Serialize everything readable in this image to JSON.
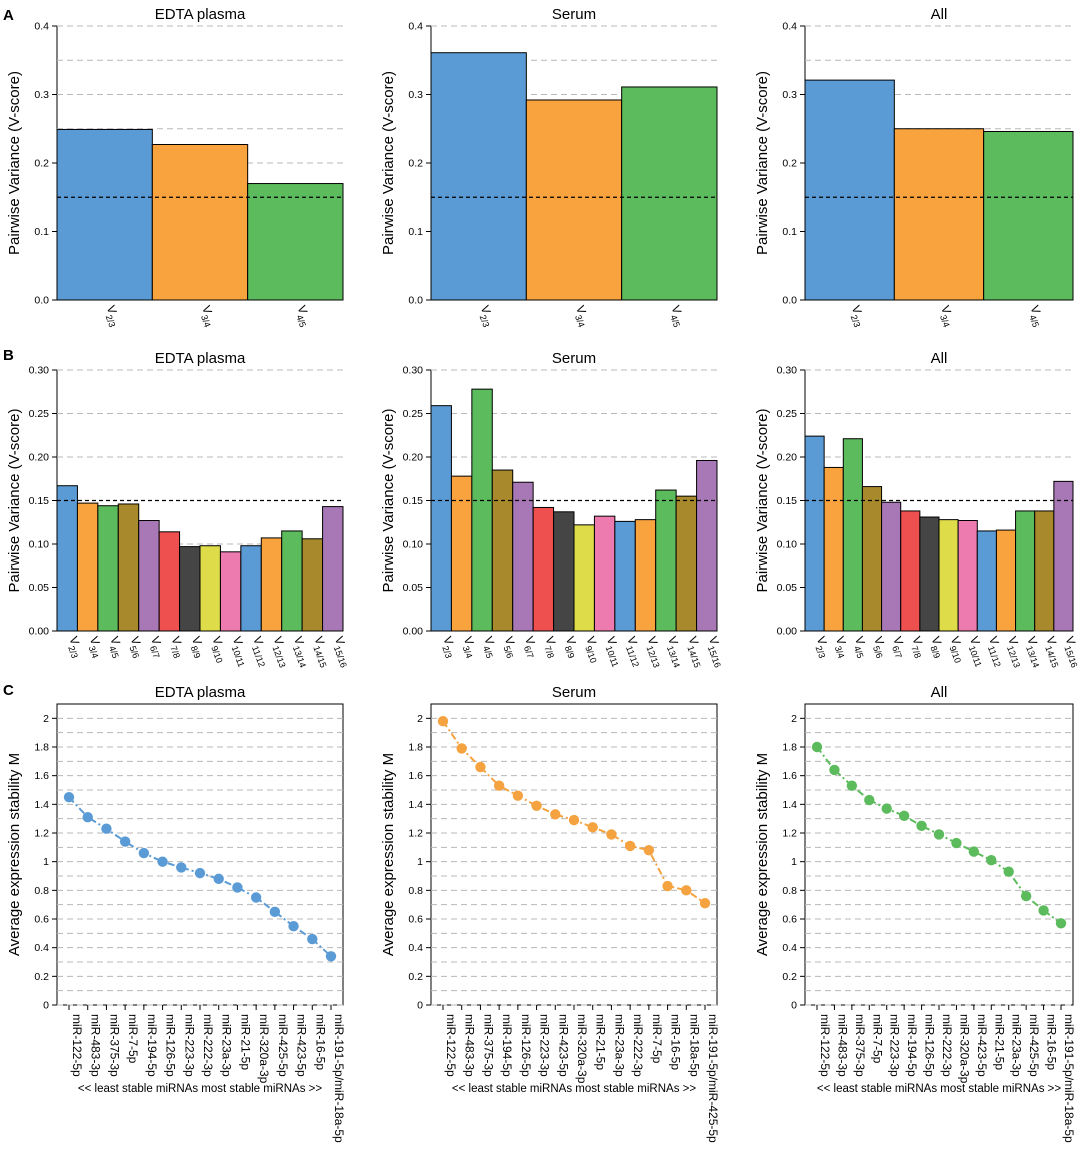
{
  "colors": {
    "blue": "#5b9bd5",
    "orange": "#f9a33f",
    "green": "#5cbb5c",
    "olive": "#a88a2c",
    "purple": "#a877b6",
    "red": "#ee4f4f",
    "dark": "#454545",
    "yellow": "#dedc48",
    "pink": "#ee7bb0",
    "threshold_line": "#000000",
    "grid": "#b8b8b8",
    "dot_blue": "#5b9bd5",
    "dot_orange": "#f4a340",
    "dot_green": "#5cbb5c"
  },
  "panel_labels": [
    "A",
    "B",
    "C"
  ],
  "chart_data": [
    {
      "id": "a1",
      "panel": "A",
      "type": "bar",
      "title": "EDTA plasma",
      "ylabel": "Pairwise Variance (V-score)",
      "ylim": [
        0,
        0.4
      ],
      "yticks": [
        "0.0",
        "0.1",
        "0.2",
        "0.3",
        "0.4"
      ],
      "categories": [
        [
          "V",
          "2/3"
        ],
        [
          "V",
          "3/4"
        ],
        [
          "V",
          "4/5"
        ]
      ],
      "values": [
        0.249,
        0.227,
        0.17
      ],
      "colors": [
        "blue",
        "orange",
        "green"
      ],
      "threshold": 0.15
    },
    {
      "id": "a2",
      "panel": "A",
      "type": "bar",
      "title": "Serum",
      "ylabel": "Pairwise Variance (V-score)",
      "ylim": [
        0,
        0.4
      ],
      "yticks": [
        "0.0",
        "0.1",
        "0.2",
        "0.3",
        "0.4"
      ],
      "categories": [
        [
          "V",
          "2/3"
        ],
        [
          "V",
          "3/4"
        ],
        [
          "V",
          "4/5"
        ]
      ],
      "values": [
        0.361,
        0.292,
        0.311
      ],
      "colors": [
        "blue",
        "orange",
        "green"
      ],
      "threshold": 0.15
    },
    {
      "id": "a3",
      "panel": "A",
      "type": "bar",
      "title": "All",
      "ylabel": "Pairwise Variance (V-score)",
      "ylim": [
        0,
        0.4
      ],
      "yticks": [
        "0.0",
        "0.1",
        "0.2",
        "0.3",
        "0.4"
      ],
      "categories": [
        [
          "V",
          "2/3"
        ],
        [
          "V",
          "3/4"
        ],
        [
          "V",
          "4/5"
        ]
      ],
      "values": [
        0.321,
        0.25,
        0.246
      ],
      "colors": [
        "blue",
        "orange",
        "green"
      ],
      "threshold": 0.15
    },
    {
      "id": "b1",
      "panel": "B",
      "type": "bar",
      "title": "EDTA plasma",
      "ylabel": "Pairwise Variance (V-score)",
      "ylim": [
        0,
        0.3
      ],
      "yticks": [
        "0.00",
        "0.05",
        "0.10",
        "0.15",
        "0.20",
        "0.25",
        "0.30"
      ],
      "categories": [
        [
          "V",
          "2/3"
        ],
        [
          "V",
          "3/4"
        ],
        [
          "V",
          "4/5"
        ],
        [
          "V",
          "5/6"
        ],
        [
          "V",
          "6/7"
        ],
        [
          "V",
          "7/8"
        ],
        [
          "V",
          "8/9"
        ],
        [
          "V",
          "9/10"
        ],
        [
          "V",
          "10/11"
        ],
        [
          "V",
          "11/12"
        ],
        [
          "V",
          "12/13"
        ],
        [
          "V",
          "13/14"
        ],
        [
          "V",
          "14/15"
        ],
        [
          "V",
          "15/16"
        ]
      ],
      "values": [
        0.167,
        0.147,
        0.144,
        0.146,
        0.127,
        0.114,
        0.097,
        0.098,
        0.091,
        0.098,
        0.107,
        0.115,
        0.106,
        0.143
      ],
      "colors": [
        "blue",
        "orange",
        "green",
        "olive",
        "purple",
        "red",
        "dark",
        "yellow",
        "pink",
        "blue",
        "orange",
        "green",
        "olive",
        "purple"
      ],
      "threshold": 0.15
    },
    {
      "id": "b2",
      "panel": "B",
      "type": "bar",
      "title": "Serum",
      "ylabel": "Pairwise Variance (V-score)",
      "ylim": [
        0,
        0.3
      ],
      "yticks": [
        "0.00",
        "0.05",
        "0.10",
        "0.15",
        "0.20",
        "0.25",
        "0.30"
      ],
      "categories": [
        [
          "V",
          "2/3"
        ],
        [
          "V",
          "3/4"
        ],
        [
          "V",
          "4/5"
        ],
        [
          "V",
          "5/6"
        ],
        [
          "V",
          "6/7"
        ],
        [
          "V",
          "7/8"
        ],
        [
          "V",
          "8/9"
        ],
        [
          "V",
          "9/10"
        ],
        [
          "V",
          "10/11"
        ],
        [
          "V",
          "11/12"
        ],
        [
          "V",
          "12/13"
        ],
        [
          "V",
          "13/14"
        ],
        [
          "V",
          "14/15"
        ],
        [
          "V",
          "15/16"
        ]
      ],
      "values": [
        0.259,
        0.178,
        0.278,
        0.185,
        0.171,
        0.142,
        0.137,
        0.122,
        0.132,
        0.126,
        0.128,
        0.162,
        0.155,
        0.196
      ],
      "colors": [
        "blue",
        "orange",
        "green",
        "olive",
        "purple",
        "red",
        "dark",
        "yellow",
        "pink",
        "blue",
        "orange",
        "green",
        "olive",
        "purple"
      ],
      "threshold": 0.15
    },
    {
      "id": "b3",
      "panel": "B",
      "type": "bar",
      "title": "All",
      "ylabel": "Pairwise Variance (V-score)",
      "ylim": [
        0,
        0.3
      ],
      "yticks": [
        "0.00",
        "0.05",
        "0.10",
        "0.15",
        "0.20",
        "0.25",
        "0.30"
      ],
      "categories": [
        [
          "V",
          "2/3"
        ],
        [
          "V",
          "3/4"
        ],
        [
          "V",
          "4/5"
        ],
        [
          "V",
          "5/6"
        ],
        [
          "V",
          "6/7"
        ],
        [
          "V",
          "7/8"
        ],
        [
          "V",
          "8/9"
        ],
        [
          "V",
          "9/10"
        ],
        [
          "V",
          "10/11"
        ],
        [
          "V",
          "11/12"
        ],
        [
          "V",
          "12/13"
        ],
        [
          "V",
          "13/14"
        ],
        [
          "V",
          "14/15"
        ],
        [
          "V",
          "15/16"
        ]
      ],
      "values": [
        0.224,
        0.188,
        0.221,
        0.166,
        0.148,
        0.138,
        0.131,
        0.128,
        0.127,
        0.115,
        0.116,
        0.138,
        0.138,
        0.172
      ],
      "colors": [
        "blue",
        "orange",
        "green",
        "olive",
        "purple",
        "red",
        "dark",
        "yellow",
        "pink",
        "blue",
        "orange",
        "green",
        "olive",
        "purple"
      ],
      "threshold": 0.15
    },
    {
      "id": "c1",
      "panel": "C",
      "type": "line",
      "title": "EDTA plasma",
      "ylabel": "Average expression stability M",
      "ylim": [
        0,
        2.1
      ],
      "yticks": [
        "0",
        "0.2",
        "0.4",
        "0.6",
        "0.8",
        "1",
        "1.2",
        "1.4",
        "1.6",
        "1.8",
        "2"
      ],
      "categories": [
        "miR-122-5p",
        "miR-483-3p",
        "miR-375-3p",
        "miR-7-5p",
        "miR-194-5p",
        "miR-126-5p",
        "miR-223-3p",
        "miR-222-3p",
        "miR-23a-3p",
        "miR-21-5p",
        "miR-320a-3p",
        "miR-425-5p",
        "miR-423-5p",
        "miR-16-5p",
        "miR-191-5p/miR-18a-5p"
      ],
      "values": [
        1.45,
        1.31,
        1.23,
        1.14,
        1.06,
        1.0,
        0.96,
        0.92,
        0.88,
        0.82,
        0.75,
        0.65,
        0.55,
        0.46,
        0.34
      ],
      "color": "dot_blue",
      "footer": "<< least stable miRNAs   most stable miRNAs >>"
    },
    {
      "id": "c2",
      "panel": "C",
      "type": "line",
      "title": "Serum",
      "ylabel": "Average expression stability M",
      "ylim": [
        0,
        2.1
      ],
      "yticks": [
        "0",
        "0.2",
        "0.4",
        "0.6",
        "0.8",
        "1",
        "1.2",
        "1.4",
        "1.6",
        "1.8",
        "2"
      ],
      "categories": [
        "miR-122-5p",
        "miR-483-3p",
        "miR-375-3p",
        "miR-194-5p",
        "miR-126-5p",
        "miR-223-3p",
        "miR-423-5p",
        "miR-320a-3p",
        "miR-21-5p",
        "miR-23a-3p",
        "miR-222-3p",
        "miR-7-5p",
        "miR-16-5p",
        "miR-18a-5p",
        "miR-191-5p/miR-425-5p"
      ],
      "values": [
        1.98,
        1.79,
        1.66,
        1.53,
        1.46,
        1.39,
        1.33,
        1.29,
        1.24,
        1.19,
        1.11,
        1.08,
        0.83,
        0.8,
        0.71
      ],
      "color": "dot_orange",
      "footer": "<< least stable miRNAs   most stable miRNAs >>"
    },
    {
      "id": "c3",
      "panel": "C",
      "type": "line",
      "title": "All",
      "ylabel": "Average expression stability M",
      "ylim": [
        0,
        2.1
      ],
      "yticks": [
        "0",
        "0.2",
        "0.4",
        "0.6",
        "0.8",
        "1",
        "1.2",
        "1.4",
        "1.6",
        "1.8",
        "2"
      ],
      "categories": [
        "miR-122-5p",
        "miR-483-3p",
        "miR-375-3p",
        "miR-7-5p",
        "miR-223-3p",
        "miR-194-5p",
        "miR-126-5p",
        "miR-222-3p",
        "miR-320a-3p",
        "miR-423-5p",
        "miR-21-5p",
        "miR-23a-3p",
        "miR-425-5p",
        "miR-16-5p",
        "miR-191-5p/miR-18a-5p"
      ],
      "values": [
        1.8,
        1.64,
        1.53,
        1.43,
        1.37,
        1.32,
        1.25,
        1.19,
        1.13,
        1.07,
        1.01,
        0.93,
        0.76,
        0.66,
        0.57
      ],
      "color": "dot_green",
      "footer": "<< least stable miRNAs   most stable miRNAs >>"
    }
  ]
}
